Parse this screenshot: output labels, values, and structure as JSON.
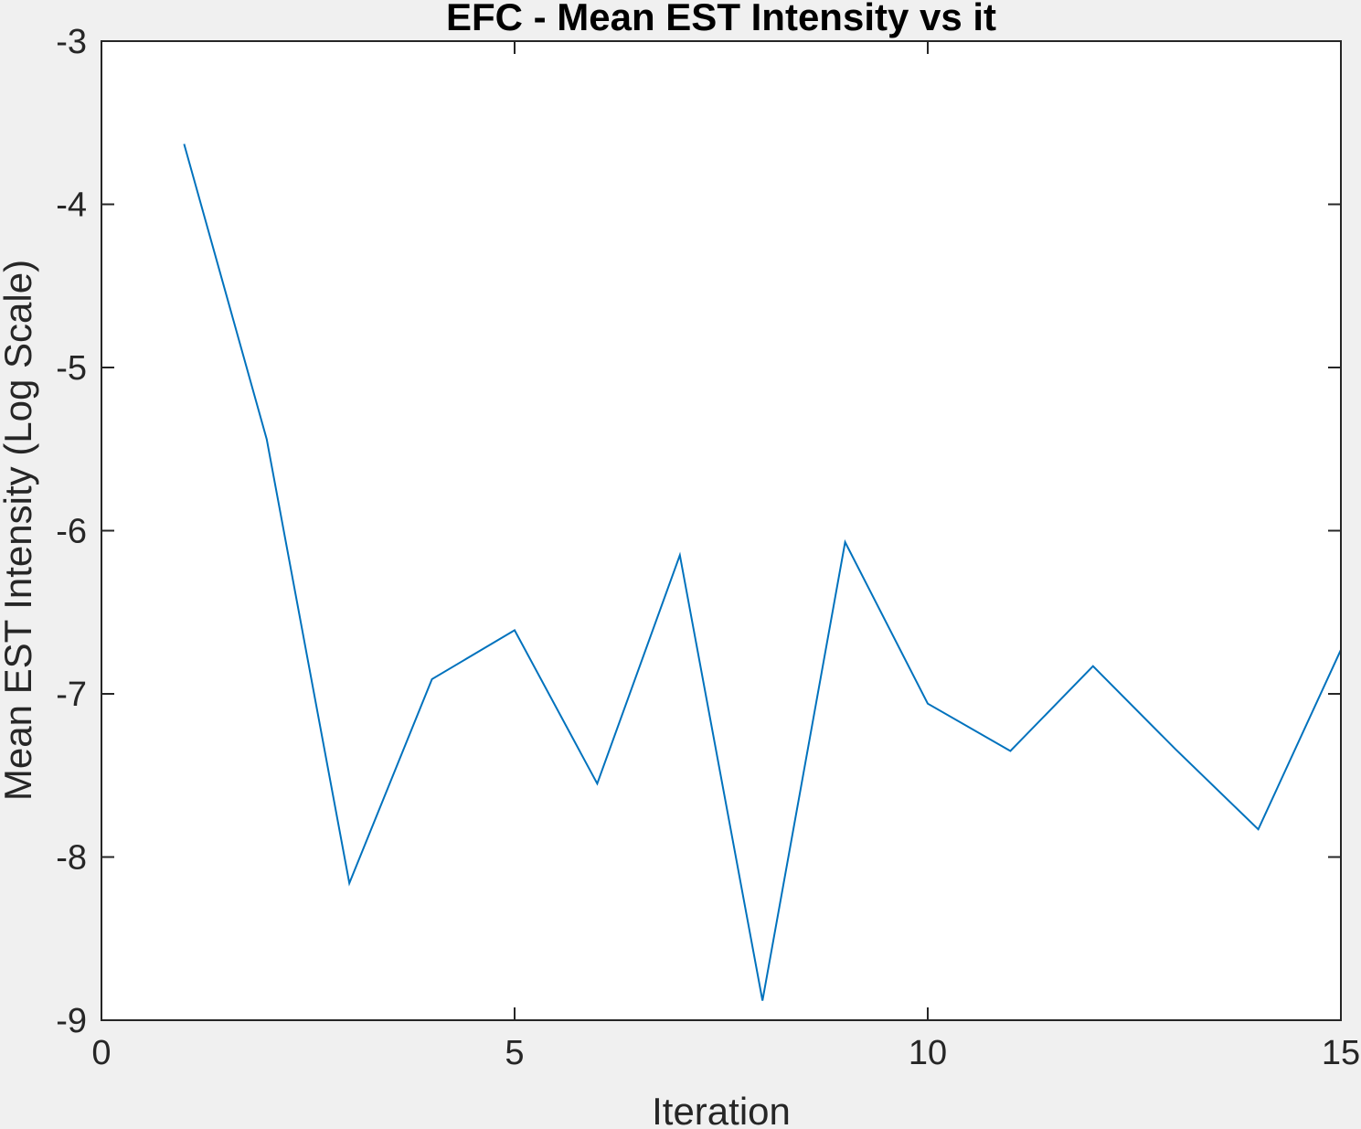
{
  "chart_data": {
    "type": "line",
    "title": "EFC - Mean EST Intensity vs it",
    "xlabel": "Iteration",
    "ylabel": "Mean EST Intensity (Log Scale)",
    "xlim": [
      0,
      15
    ],
    "ylim": [
      -9,
      -3
    ],
    "xticks": [
      0,
      5,
      10,
      15
    ],
    "yticks": [
      -9,
      -8,
      -7,
      -6,
      -5,
      -4,
      -3
    ],
    "grid": false,
    "line_color": "#0072bd",
    "series": [
      {
        "x": [
          1,
          2,
          3,
          4,
          5,
          6,
          7,
          8,
          9,
          10,
          11,
          12,
          13,
          14,
          15
        ],
        "y": [
          -3.63,
          -5.44,
          -8.16,
          -6.91,
          -6.61,
          -7.55,
          -6.15,
          -8.88,
          -6.07,
          -7.06,
          -7.35,
          -6.83,
          -7.34,
          -7.83,
          -6.73
        ]
      }
    ]
  }
}
